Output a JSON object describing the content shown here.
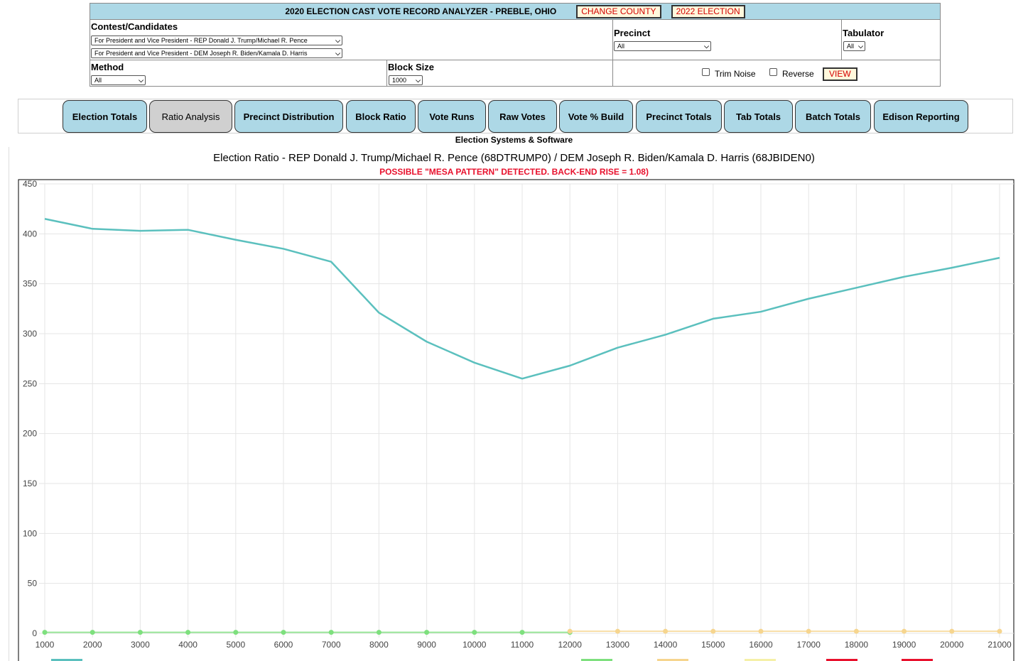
{
  "header": {
    "title": "2020 ELECTION CAST VOTE RECORD ANALYZER - PREBLE, OHIO",
    "change_county": "CHANGE COUNTY",
    "election_2022": "2022 ELECTION"
  },
  "controls": {
    "contest_label": "Contest/Candidates",
    "contest_1": "For President and Vice President - REP Donald J. Trump/Michael R. Pence",
    "contest_2": "For President and Vice President - DEM Joseph R. Biden/Kamala D. Harris",
    "precinct_label": "Precinct",
    "precinct_value": "All",
    "tabulator_label": "Tabulator",
    "tabulator_value": "All",
    "method_label": "Method",
    "method_value": "All",
    "block_size_label": "Block Size",
    "block_size_value": "1000",
    "trim_noise_label": "Trim Noise",
    "reverse_label": "Reverse",
    "view_label": "VIEW"
  },
  "tabs": [
    {
      "label": "Election Totals",
      "active": false
    },
    {
      "label": "Ratio Analysis",
      "active": true
    },
    {
      "label": "Precinct Distribution",
      "active": false
    },
    {
      "label": "Block Ratio",
      "active": false
    },
    {
      "label": "Vote Runs",
      "active": false
    },
    {
      "label": "Raw Votes",
      "active": false
    },
    {
      "label": "Vote % Build",
      "active": false
    },
    {
      "label": "Precinct Totals",
      "active": false
    },
    {
      "label": "Tab Totals",
      "active": false
    },
    {
      "label": "Batch Totals",
      "active": false
    },
    {
      "label": "Edison Reporting",
      "active": false
    }
  ],
  "vendor": "Election Systems & Software",
  "chart_data": {
    "type": "line",
    "title": "Election Ratio - REP Donald J. Trump/Michael R. Pence (68DTRUMP0) / DEM Joseph R. Biden/Kamala D. Harris (68JBIDEN0)",
    "subtitle": "POSSIBLE \"MESA PATTERN\" DETECTED. BACK-END RISE = 1.08)",
    "xlabel": "",
    "ylabel": "",
    "xlim": [
      1000,
      21000
    ],
    "ylim": [
      0,
      450
    ],
    "x_ticks": [
      1000,
      2000,
      3000,
      4000,
      5000,
      6000,
      7000,
      8000,
      9000,
      10000,
      11000,
      12000,
      13000,
      14000,
      15000,
      16000,
      17000,
      18000,
      19000,
      20000,
      21000
    ],
    "y_ticks": [
      0,
      50,
      100,
      150,
      200,
      250,
      300,
      350,
      400,
      450
    ],
    "grid": true,
    "series": [
      {
        "color": "#5bc0be",
        "x": [
          1000,
          2000,
          3000,
          4000,
          5000,
          6000,
          7000,
          8000,
          9000,
          10000,
          11000,
          12000,
          13000,
          14000,
          15000,
          16000,
          17000,
          18000,
          19000,
          20000,
          21000
        ],
        "y": [
          415,
          405,
          403,
          404,
          394,
          385,
          372,
          321,
          292,
          271,
          255,
          268,
          286,
          299,
          315,
          322,
          335,
          346,
          357,
          366,
          376
        ],
        "markers": false
      },
      {
        "color": "#7ee07e",
        "x": [
          1000,
          2000,
          3000,
          4000,
          5000,
          6000,
          7000,
          8000,
          9000,
          10000,
          11000,
          12000
        ],
        "y": [
          1,
          1,
          1,
          1,
          1,
          1,
          1,
          1,
          1,
          1,
          1,
          1
        ],
        "markers": true
      },
      {
        "color": "#f6d58e",
        "x": [
          12000,
          13000,
          14000,
          15000,
          16000,
          17000,
          18000,
          19000,
          20000,
          21000
        ],
        "y": [
          2,
          2,
          2,
          2,
          2,
          2,
          2,
          2,
          2,
          2
        ],
        "markers": true
      }
    ],
    "legend_swatches": [
      "#5bc0be",
      "#7ee07e",
      "#f6d58e",
      "#f5f0a8",
      "#e8112d",
      "#e8112d"
    ]
  }
}
